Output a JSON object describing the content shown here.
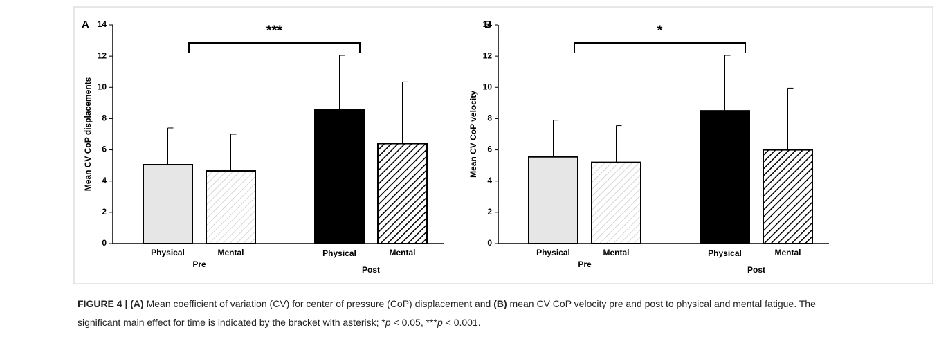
{
  "chart_data": [
    {
      "type": "bar",
      "panel": "A",
      "ylabel": "Mean CV CoP displacements",
      "groups": [
        "Pre",
        "Post"
      ],
      "categories": [
        "Physical",
        "Mental",
        "Physical",
        "Mental"
      ],
      "values": [
        5.05,
        4.65,
        8.55,
        6.4
      ],
      "errors": [
        2.35,
        2.35,
        3.5,
        3.95
      ],
      "colors": [
        "#e6e6e6",
        "#c8c8c8",
        "#000000",
        "#000000"
      ],
      "hatch": [
        false,
        true,
        false,
        true
      ],
      "ylim": [
        0,
        14
      ],
      "yticks": [
        0,
        2,
        4,
        6,
        8,
        10,
        12,
        14
      ],
      "annotation": "***"
    },
    {
      "type": "bar",
      "panel": "B",
      "ylabel": "Mean CV CoP velocity",
      "groups": [
        "Pre",
        "Post"
      ],
      "categories": [
        "Physical",
        "Mental",
        "Physical",
        "Mental"
      ],
      "values": [
        5.55,
        5.2,
        8.5,
        6.0
      ],
      "errors": [
        2.35,
        2.35,
        3.55,
        3.95
      ],
      "colors": [
        "#e6e6e6",
        "#c8c8c8",
        "#000000",
        "#000000"
      ],
      "hatch": [
        false,
        true,
        false,
        true
      ],
      "ylim": [
        0,
        14
      ],
      "yticks": [
        0,
        2,
        4,
        6,
        8,
        10,
        12,
        14
      ],
      "annotation": "*"
    }
  ],
  "caption": {
    "segments": [
      {
        "text": "FIGURE 4 | ",
        "bold": true
      },
      {
        "text": "(A)",
        "bold": true
      },
      {
        "text": " Mean coefficient of variation (CV) for center of pressure (CoP) displacement and "
      },
      {
        "text": "(B)",
        "bold": true
      },
      {
        "text": " mean CV CoP velocity pre and post to physical and mental fatigue. The significant main effect for time is indicated by the bracket with asterisk; *"
      },
      {
        "text": "p",
        "italic": true
      },
      {
        "text": " < 0.05, ***"
      },
      {
        "text": "p",
        "italic": true
      },
      {
        "text": " < 0.001."
      }
    ]
  }
}
